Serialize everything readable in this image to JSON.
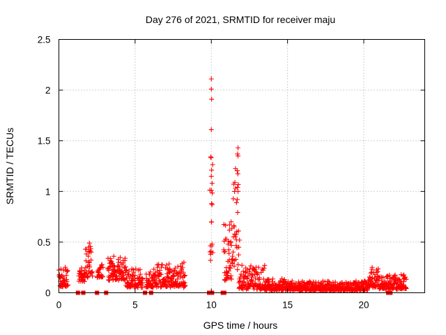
{
  "chart_data": {
    "type": "scatter",
    "title": "Day 276 of 2021, SRMTID for receiver maju",
    "xlabel": "GPS time / hours",
    "ylabel": "SRMTID / TECUs",
    "xlim": [
      0,
      24
    ],
    "ylim": [
      0,
      2.5
    ],
    "xticks": [
      0,
      5,
      10,
      15,
      20
    ],
    "xtick_labels": [
      "0",
      "5",
      "10",
      "15",
      "20"
    ],
    "yticks": [
      0,
      0.5,
      1,
      1.5,
      2,
      2.5
    ],
    "ytick_labels": [
      "0",
      "0.5",
      "1",
      "1.5",
      "2",
      "2.5"
    ],
    "grid": true,
    "marker": "plus",
    "color": "#ff0000",
    "segments": [
      {
        "x_start": 0.0,
        "x_end": 0.6,
        "y_min": 0.05,
        "y_max": 0.27
      },
      {
        "x_start": 1.3,
        "x_end": 1.7,
        "y_min": 0.1,
        "y_max": 0.25
      },
      {
        "x_start": 1.7,
        "x_end": 2.2,
        "y_min": 0.15,
        "y_max": 0.49
      },
      {
        "x_start": 2.5,
        "x_end": 2.9,
        "y_min": 0.15,
        "y_max": 0.3
      },
      {
        "x_start": 3.2,
        "x_end": 4.4,
        "y_min": 0.12,
        "y_max": 0.36
      },
      {
        "x_start": 4.4,
        "x_end": 5.5,
        "y_min": 0.05,
        "y_max": 0.25
      },
      {
        "x_start": 5.7,
        "x_end": 6.2,
        "y_min": 0.05,
        "y_max": 0.22
      },
      {
        "x_start": 6.2,
        "x_end": 8.3,
        "y_min": 0.05,
        "y_max": 0.3
      },
      {
        "x_start": 9.9,
        "x_end": 10.1,
        "y_min": 0.3,
        "y_max": 2.1
      },
      {
        "x_start": 10.8,
        "x_end": 11.4,
        "y_min": 0.1,
        "y_max": 0.72
      },
      {
        "x_start": 11.4,
        "x_end": 11.8,
        "y_min": 0.2,
        "y_max": 1.44
      },
      {
        "x_start": 11.8,
        "x_end": 13.5,
        "y_min": 0.03,
        "y_max": 0.28
      },
      {
        "x_start": 13.5,
        "x_end": 14.8,
        "y_min": 0.02,
        "y_max": 0.15
      },
      {
        "x_start": 14.8,
        "x_end": 20.3,
        "y_min": 0.02,
        "y_max": 0.12
      },
      {
        "x_start": 20.3,
        "x_end": 21.0,
        "y_min": 0.05,
        "y_max": 0.25
      },
      {
        "x_start": 21.0,
        "x_end": 22.8,
        "y_min": 0.03,
        "y_max": 0.18
      }
    ],
    "spikes": [
      {
        "x": 10.0,
        "y": 2.11
      },
      {
        "x": 10.0,
        "y": 2.01
      },
      {
        "x": 10.02,
        "y": 1.91
      },
      {
        "x": 10.0,
        "y": 1.61
      },
      {
        "x": 10.02,
        "y": 1.21
      },
      {
        "x": 10.0,
        "y": 1.15
      },
      {
        "x": 10.05,
        "y": 1.08
      },
      {
        "x": 10.0,
        "y": 1.01
      },
      {
        "x": 10.02,
        "y": 0.88
      },
      {
        "x": 10.05,
        "y": 0.87
      },
      {
        "x": 9.95,
        "y": 0.32
      },
      {
        "x": 11.75,
        "y": 1.43
      },
      {
        "x": 11.72,
        "y": 1.37
      },
      {
        "x": 11.75,
        "y": 1.35
      },
      {
        "x": 11.72,
        "y": 1.04
      },
      {
        "x": 11.75,
        "y": 1.0
      },
      {
        "x": 11.7,
        "y": 0.92
      },
      {
        "x": 11.65,
        "y": 0.89
      },
      {
        "x": 11.85,
        "y": 0.52
      },
      {
        "x": 11.3,
        "y": 0.7
      },
      {
        "x": 11.2,
        "y": 0.67
      },
      {
        "x": 11.5,
        "y": 0.65
      },
      {
        "x": 11.0,
        "y": 0.53
      },
      {
        "x": 11.1,
        "y": 0.48
      },
      {
        "x": 11.8,
        "y": 0.45
      },
      {
        "x": 2.0,
        "y": 0.49
      },
      {
        "x": 1.95,
        "y": 0.45
      },
      {
        "x": 3.6,
        "y": 0.36
      },
      {
        "x": 8.2,
        "y": 0.3
      },
      {
        "x": 20.55,
        "y": 0.25
      },
      {
        "x": 13.5,
        "y": 0.27
      }
    ],
    "zero_points": [
      1.25,
      1.6,
      2.5,
      3.1,
      5.65,
      6.05,
      9.85,
      10.05,
      10.75,
      10.85,
      21.6,
      21.75
    ]
  }
}
